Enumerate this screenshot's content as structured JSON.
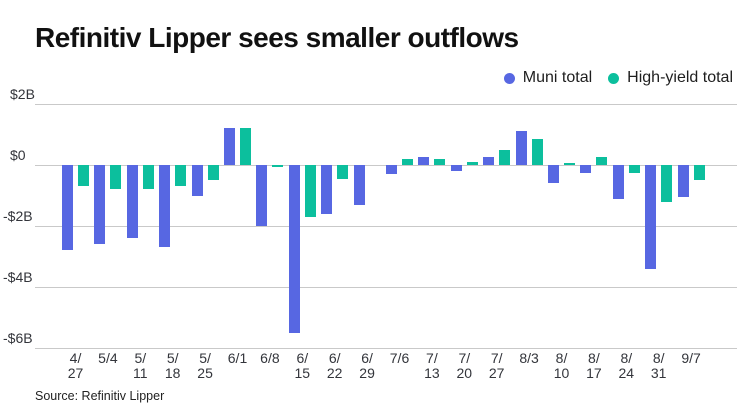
{
  "title": "Refinitiv Lipper sees smaller outflows",
  "source": "Source: Refinitiv Lipper",
  "colors": {
    "muni_blue": "#5767E2",
    "high_yield_teal": "#0CBF9D",
    "gridline": "#C9C9C9",
    "title_text": "#111111",
    "axis_text": "#33353B"
  },
  "chart_data": {
    "type": "bar",
    "title": "Refinitiv Lipper sees smaller outflows",
    "value_unit": "$B",
    "categories": [
      "4/27",
      "5/4",
      "5/11",
      "5/18",
      "5/25",
      "6/1",
      "6/8",
      "6/15",
      "6/22",
      "6/29",
      "7/6",
      "7/13",
      "7/20",
      "7/27",
      "8/3",
      "8/10",
      "8/17",
      "8/24",
      "8/31",
      "9/7"
    ],
    "x_tick_lines": [
      [
        "4/",
        "27"
      ],
      [
        "5/4"
      ],
      [
        "5/",
        "11"
      ],
      [
        "5/",
        "18"
      ],
      [
        "5/",
        "25"
      ],
      [
        "6/1"
      ],
      [
        "6/8"
      ],
      [
        "6/",
        "15"
      ],
      [
        "6/",
        "22"
      ],
      [
        "6/",
        "29"
      ],
      [
        "7/6"
      ],
      [
        "7/",
        "13"
      ],
      [
        "7/",
        "20"
      ],
      [
        "7/",
        "27"
      ],
      [
        "8/3"
      ],
      [
        "8/",
        "10"
      ],
      [
        "8/",
        "17"
      ],
      [
        "8/",
        "24"
      ],
      [
        "8/",
        "31"
      ],
      [
        "9/7"
      ]
    ],
    "series": [
      {
        "name": "Muni total",
        "color": "#5767E2",
        "values": [
          -2.8,
          -2.6,
          -2.4,
          -2.7,
          -1.0,
          1.2,
          -2.0,
          -5.5,
          -1.6,
          -1.3,
          -0.3,
          0.25,
          -0.2,
          0.25,
          1.1,
          -0.6,
          -0.25,
          -1.1,
          -3.4,
          -1.05
        ]
      },
      {
        "name": "High-yield total",
        "color": "#0CBF9D",
        "values": [
          -0.7,
          -0.8,
          -0.8,
          -0.7,
          -0.5,
          1.2,
          -0.05,
          -1.7,
          -0.45,
          0,
          0.2,
          0.2,
          0.1,
          0.5,
          0.85,
          0.05,
          0.25,
          -0.25,
          -1.2,
          -0.5
        ]
      }
    ],
    "y_ticks": [
      "$2B",
      "$0",
      "-$2B",
      "-$4B",
      "-$6B"
    ],
    "y_tick_values": [
      2,
      0,
      -2,
      -4,
      -6
    ],
    "ylim": [
      -6,
      2
    ],
    "grid": true,
    "legend_position": "top-right"
  }
}
